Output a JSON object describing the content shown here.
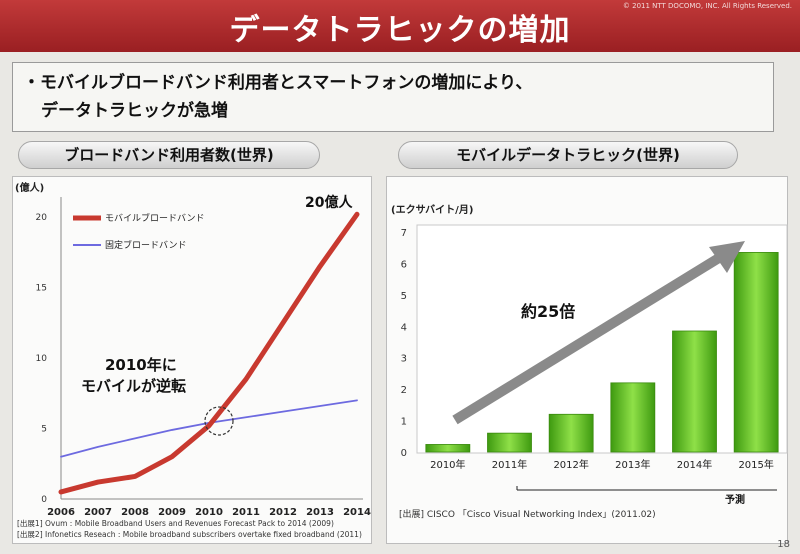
{
  "header": {
    "title": "データトラヒックの増加",
    "copyright": "© 2011 NTT DOCOMO, INC. All Rights Reserved."
  },
  "bullet": {
    "line1": "・モバイルブロードバンド利用者とスマートフォンの増加により、",
    "line2": "データトラヒックが急増"
  },
  "left_panel": {
    "heading": "ブロードバンド利用者数(世界)",
    "unit": "(億人)",
    "callout": "20億人",
    "annotation_line1": "2010年に",
    "annotation_line2": "モバイルが逆転",
    "source1": "[出展1] Ovum : Mobile Broadband Users and Revenues Forecast Pack to 2014 (2009)",
    "source2": "[出展2] Infonetics Reseach : Mobile broadband subscribers overtake fixed broadband (2011)"
  },
  "right_panel": {
    "heading": "モバイルデータトラヒック(世界)",
    "unit": "(エクサバイト/月)",
    "annotation": "約25倍",
    "forecast_label": "予測",
    "source": "[出展] CISCO 「Cisco Visual Networking Index」(2011.02)"
  },
  "page_number": "18",
  "chart_data": [
    {
      "type": "line",
      "x": [
        2006,
        2007,
        2008,
        2009,
        2010,
        2011,
        2012,
        2013,
        2014
      ],
      "xticks": [
        "2006",
        "2007",
        "2008",
        "2009",
        "2010",
        "2011",
        "2012",
        "2013",
        "2014"
      ],
      "yticks": [
        "0",
        "5",
        "10",
        "15",
        "20"
      ],
      "ylim": [
        0,
        21
      ],
      "series": [
        {
          "name": "モバイルブロードバンド",
          "color": "#c8392f",
          "values": [
            0.5,
            1.2,
            1.6,
            3.0,
            5.2,
            8.5,
            12.5,
            16.5,
            20.2
          ]
        },
        {
          "name": "固定ブロードバンド",
          "color": "#6d6ae0",
          "values": [
            3.0,
            3.7,
            4.3,
            4.9,
            5.4,
            5.8,
            6.2,
            6.6,
            7.0
          ]
        }
      ]
    },
    {
      "type": "bar",
      "categories": [
        "2010年",
        "2011年",
        "2012年",
        "2013年",
        "2014年",
        "2015年"
      ],
      "values": [
        0.24,
        0.6,
        1.2,
        2.2,
        3.85,
        6.35
      ],
      "color": "#5fc21e",
      "yticks": [
        "0",
        "1",
        "2",
        "3",
        "4",
        "5",
        "6",
        "7"
      ],
      "ylim": [
        0,
        7
      ]
    }
  ]
}
